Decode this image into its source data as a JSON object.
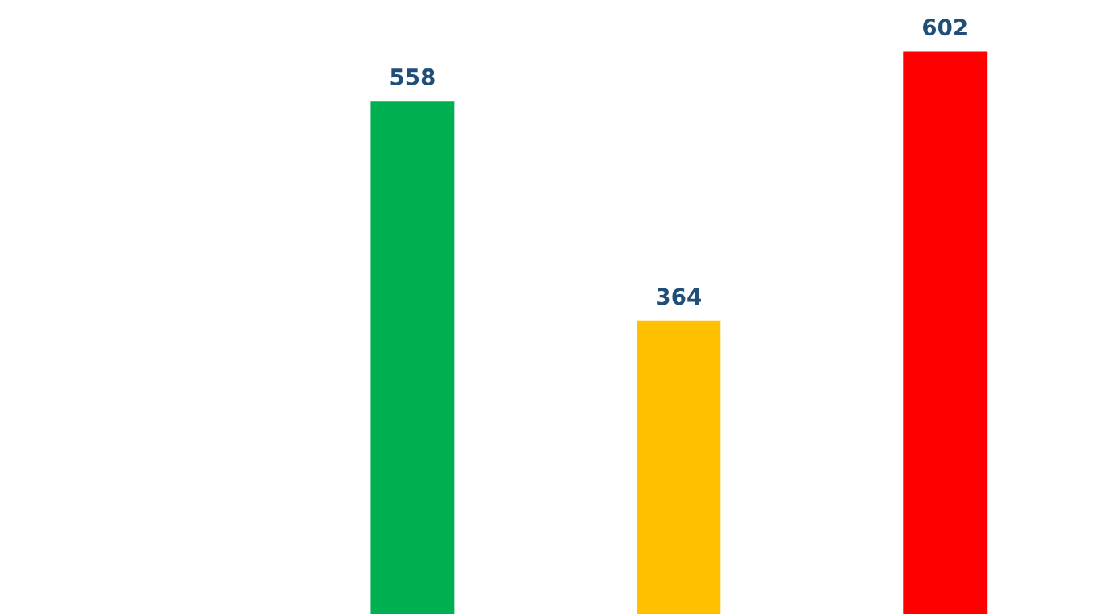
{
  "chart_data": {
    "type": "bar",
    "categories": [
      null,
      null,
      null
    ],
    "values": [
      558,
      364,
      602
    ],
    "colors": [
      "#00b050",
      "#ffc000",
      "#ff0000"
    ],
    "data_labels": true,
    "grid": false,
    "legend": false
  }
}
